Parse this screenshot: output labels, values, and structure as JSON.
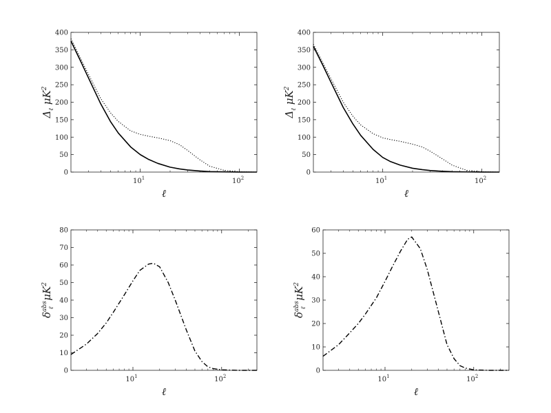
{
  "chart_data": [
    {
      "type": "line",
      "x_scale": "log",
      "xlim": [
        2,
        150
      ],
      "ylim": [
        0,
        400
      ],
      "y_ticks": [
        0,
        50,
        100,
        150,
        200,
        250,
        300,
        350,
        400
      ],
      "x_ticks": [
        10,
        100
      ],
      "x_tick_labels": [
        {
          "base": "10",
          "exp": "1"
        },
        {
          "base": "10",
          "exp": "2"
        }
      ],
      "xlabel": "ℓ",
      "ylabel": {
        "main": "Δ",
        "sub": "ℓ",
        "unit": "μK",
        "sup": "2"
      },
      "grid": false,
      "series": [
        {
          "style": "solid",
          "x": [
            2,
            2.5,
            3,
            4,
            5,
            6,
            8,
            10,
            12,
            15,
            20,
            25,
            30,
            40,
            50,
            70,
            100,
            150
          ],
          "y": [
            375,
            318,
            270,
            195,
            145,
            112,
            72,
            50,
            37,
            25,
            14,
            9,
            6,
            3,
            1.5,
            0.6,
            0.2,
            0
          ]
        },
        {
          "style": "dotted",
          "x": [
            2,
            2.5,
            3,
            4,
            5,
            6,
            8,
            10,
            12,
            15,
            20,
            25,
            30,
            40,
            50,
            70,
            100,
            150
          ],
          "y": [
            382,
            326,
            280,
            210,
            170,
            145,
            118,
            108,
            103,
            98,
            90,
            78,
            62,
            35,
            17,
            5,
            1,
            0
          ]
        }
      ]
    },
    {
      "type": "line",
      "x_scale": "log",
      "xlim": [
        2,
        150
      ],
      "ylim": [
        0,
        400
      ],
      "y_ticks": [
        0,
        50,
        100,
        150,
        200,
        250,
        300,
        350,
        400
      ],
      "x_ticks": [
        10,
        100
      ],
      "x_tick_labels": [
        {
          "base": "10",
          "exp": "1"
        },
        {
          "base": "10",
          "exp": "2"
        }
      ],
      "xlabel": "ℓ",
      "ylabel": {
        "main": "Δ",
        "sub": "ℓ",
        "unit": "μK",
        "sup": "2"
      },
      "grid": false,
      "series": [
        {
          "style": "solid",
          "x": [
            2,
            2.5,
            3,
            4,
            5,
            6,
            8,
            10,
            12,
            15,
            20,
            25,
            30,
            40,
            50,
            70,
            100,
            150
          ],
          "y": [
            360,
            305,
            258,
            185,
            138,
            105,
            65,
            42,
            30,
            20,
            11,
            7,
            4.5,
            2.3,
            1.2,
            0.5,
            0.1,
            0
          ]
        },
        {
          "style": "dotted",
          "x": [
            2,
            2.5,
            3,
            4,
            5,
            6,
            8,
            10,
            12,
            15,
            20,
            25,
            30,
            40,
            50,
            70,
            100,
            150
          ],
          "y": [
            366,
            312,
            268,
            200,
            160,
            135,
            110,
            98,
            93,
            88,
            80,
            72,
            60,
            38,
            20,
            5,
            1,
            0
          ]
        }
      ]
    },
    {
      "type": "line",
      "x_scale": "log",
      "xlim": [
        2,
        250
      ],
      "ylim": [
        0,
        80
      ],
      "y_ticks": [
        0,
        10,
        20,
        30,
        40,
        50,
        60,
        70,
        80
      ],
      "x_ticks": [
        10,
        100
      ],
      "x_tick_labels": [
        {
          "base": "10",
          "exp": "1"
        },
        {
          "base": "10",
          "exp": "2"
        }
      ],
      "xlabel": "ℓ",
      "ylabel": {
        "main": "δ",
        "sub": "ℓ",
        "sup_main": "abs",
        "unit": "μK",
        "sup": "2"
      },
      "grid": false,
      "series": [
        {
          "style": "dashdot",
          "x": [
            2,
            3,
            4,
            5,
            6,
            8,
            10,
            12,
            15,
            17,
            20,
            25,
            30,
            40,
            50,
            60,
            70,
            80,
            100,
            150,
            250
          ],
          "y": [
            9,
            15,
            21,
            27,
            33,
            43,
            51,
            57,
            60.5,
            61,
            59,
            50,
            40,
            23,
            11,
            5,
            2,
            1,
            0.3,
            0,
            0
          ]
        }
      ]
    },
    {
      "type": "line",
      "x_scale": "log",
      "xlim": [
        2,
        250
      ],
      "ylim": [
        0,
        60
      ],
      "y_ticks": [
        0,
        10,
        20,
        30,
        40,
        50,
        60
      ],
      "x_ticks": [
        10,
        100
      ],
      "x_tick_labels": [
        {
          "base": "10",
          "exp": "1"
        },
        {
          "base": "10",
          "exp": "2"
        }
      ],
      "xlabel": "ℓ",
      "ylabel": {
        "main": "δ",
        "sub": "ℓ",
        "sup_main": "abs",
        "unit": "μK",
        "sup": "2"
      },
      "grid": false,
      "series": [
        {
          "style": "dashdot",
          "x": [
            2,
            3,
            4,
            5,
            6,
            8,
            10,
            12,
            15,
            18,
            20,
            25,
            30,
            40,
            50,
            60,
            70,
            80,
            100,
            150,
            250
          ],
          "y": [
            6,
            11,
            16,
            20,
            24,
            31,
            38,
            44,
            51,
            56,
            57,
            52,
            43,
            25,
            11,
            5,
            2,
            1,
            0.2,
            0,
            0
          ]
        }
      ]
    }
  ]
}
